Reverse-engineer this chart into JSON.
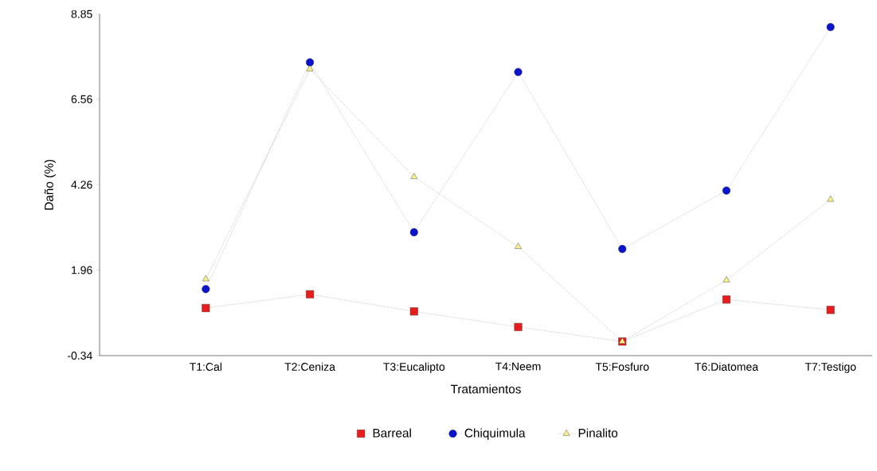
{
  "chart_data": {
    "type": "line",
    "xlabel": "Tratamientos",
    "ylabel": "Daño (%)",
    "categories": [
      "T1:Cal",
      "T2:Ceniza",
      "T3:Eucalipto",
      "T4:Neem",
      "T5:Fosfuro",
      "T6:Diatomea",
      "T7:Testigo"
    ],
    "series": [
      {
        "name": "Barreal",
        "color": "#e81c1c",
        "marker": "square",
        "values": [
          0.94,
          1.31,
          0.85,
          0.43,
          0.04,
          1.17,
          0.89
        ]
      },
      {
        "name": "Chiquimula",
        "color": "#0a14cc",
        "marker": "circle",
        "values": [
          1.45,
          7.55,
          2.98,
          7.29,
          2.53,
          4.1,
          8.5
        ]
      },
      {
        "name": "Pinalito",
        "color": "#f5f08c",
        "marker": "triangle",
        "values": [
          1.72,
          7.37,
          4.47,
          2.59,
          0.04,
          1.69,
          3.86
        ]
      }
    ],
    "ylim": [
      -0.34,
      8.85
    ],
    "yticks": [
      -0.34,
      1.96,
      4.26,
      6.56,
      8.85
    ],
    "grid": false,
    "legend": "bottom",
    "line_style": "dotted"
  }
}
